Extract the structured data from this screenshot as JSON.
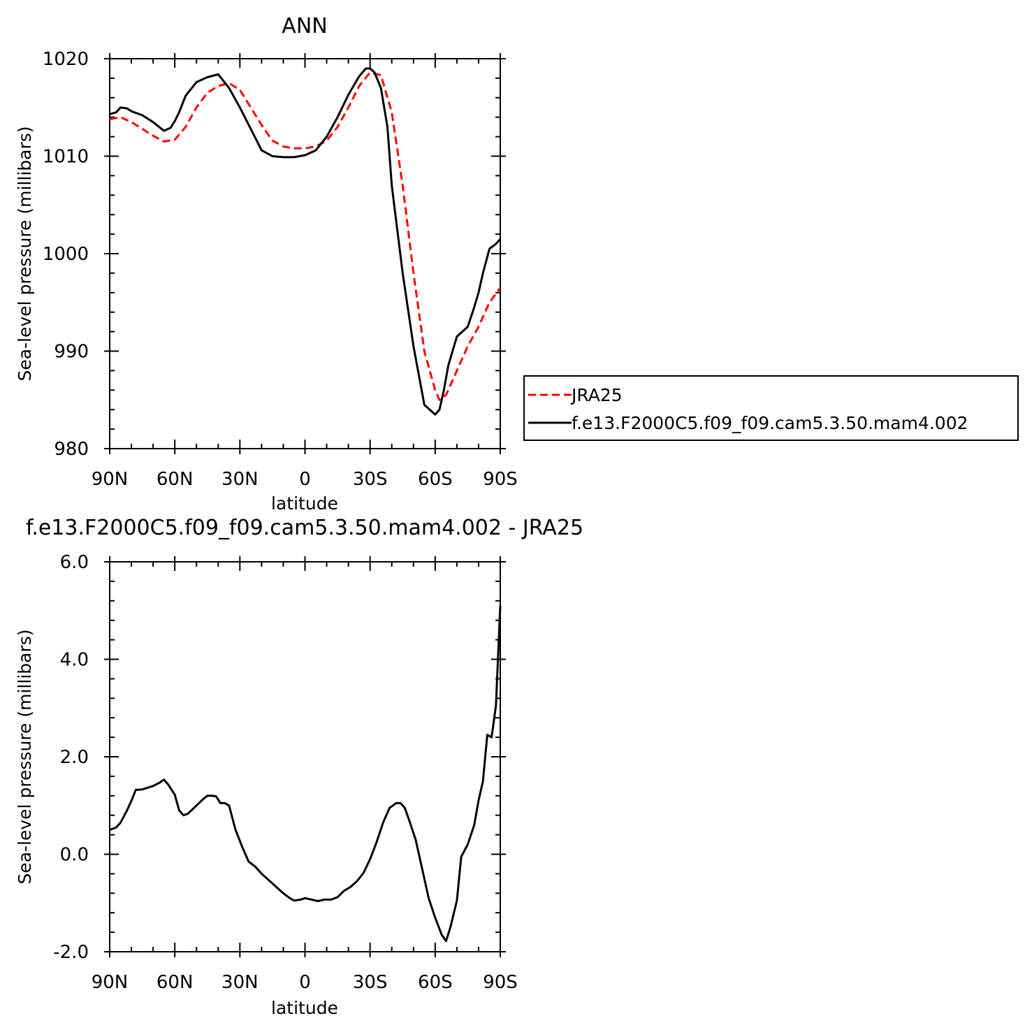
{
  "chart_data": [
    {
      "type": "line",
      "title": "ANN",
      "xlabel": "latitude",
      "ylabel": "Sea-level pressure (millibars)",
      "x_ticks": [
        "90N",
        "60N",
        "30N",
        "0",
        "30S",
        "60S",
        "90S"
      ],
      "y_ticks": [
        "980",
        "990",
        "1000",
        "1010",
        "1020"
      ],
      "ylim": [
        980,
        1020
      ],
      "legend_position": "right",
      "series": [
        {
          "name": "JRA25",
          "color": "#ff0000",
          "style": "dashed",
          "x": [
            90,
            85,
            80,
            75,
            70,
            65,
            60,
            55,
            50,
            45,
            40,
            35,
            30,
            25,
            20,
            15,
            10,
            5,
            0,
            -5,
            -10,
            -15,
            -20,
            -25,
            -30,
            -35,
            -40,
            -45,
            -50,
            -55,
            -60,
            -62,
            -65,
            -70,
            -75,
            -80,
            -85,
            -90
          ],
          "values": [
            1013.8,
            1014.0,
            1013.5,
            1012.8,
            1012.1,
            1011.5,
            1011.7,
            1013.0,
            1015.0,
            1016.5,
            1017.2,
            1017.5,
            1016.8,
            1015.0,
            1013.2,
            1011.6,
            1011.0,
            1010.8,
            1010.8,
            1011.0,
            1011.6,
            1013.0,
            1015.0,
            1017.2,
            1018.6,
            1018.3,
            1014.5,
            1007.0,
            998.0,
            990.0,
            986.0,
            985.0,
            985.5,
            988.0,
            990.5,
            992.5,
            995.0,
            996.5
          ]
        },
        {
          "name": "f.e13.F2000C5.f09_f09.cam5.3.50.mam4.002",
          "color": "#000000",
          "style": "solid",
          "x": [
            90,
            87,
            85,
            82,
            80,
            75,
            70,
            65,
            62,
            60,
            58,
            55,
            50,
            45,
            40,
            35,
            30,
            25,
            20,
            15,
            10,
            5,
            0,
            -5,
            -10,
            -15,
            -20,
            -25,
            -28,
            -30,
            -32,
            -35,
            -38,
            -40,
            -45,
            -50,
            -55,
            -60,
            -62,
            -64,
            -66,
            -70,
            -75,
            -78,
            -80,
            -82,
            -85,
            -88,
            -90
          ],
          "values": [
            1014.3,
            1014.5,
            1015.0,
            1014.9,
            1014.6,
            1014.2,
            1013.5,
            1012.6,
            1012.9,
            1013.6,
            1014.5,
            1016.2,
            1017.6,
            1018.1,
            1018.4,
            1017.0,
            1015.0,
            1012.8,
            1010.6,
            1010.0,
            1009.9,
            1009.9,
            1010.1,
            1010.6,
            1012.0,
            1014.0,
            1016.3,
            1018.2,
            1019.0,
            1019.0,
            1018.6,
            1017.0,
            1013.0,
            1007.0,
            998.0,
            990.5,
            984.5,
            983.5,
            984.0,
            986.0,
            988.5,
            991.5,
            992.5,
            994.5,
            996.0,
            998.0,
            1000.5,
            1001.0,
            1001.5
          ]
        }
      ]
    },
    {
      "type": "line",
      "title": "f.e13.F2000C5.f09_f09.cam5.3.50.mam4.002 - JRA25",
      "xlabel": "latitude",
      "ylabel": "Sea-level pressure (millibars)",
      "x_ticks": [
        "90N",
        "60N",
        "30N",
        "0",
        "30S",
        "60S",
        "90S"
      ],
      "y_ticks": [
        "-2.0",
        "0.0",
        "2.0",
        "4.0",
        "6.0"
      ],
      "ylim": [
        -2,
        6
      ],
      "series": [
        {
          "color": "#000000",
          "style": "solid",
          "x": [
            90,
            87,
            85,
            82,
            80,
            78,
            75,
            70,
            67,
            65,
            63,
            60,
            58,
            56,
            54,
            50,
            47,
            45,
            43,
            41,
            39,
            37,
            35,
            32,
            29,
            26,
            23,
            20,
            15,
            10,
            7,
            5,
            2,
            0,
            -3,
            -6,
            -9,
            -12,
            -15,
            -18,
            -21,
            -24,
            -27,
            -30,
            -33,
            -36,
            -39,
            -42,
            -44,
            -46,
            -48,
            -51,
            -54,
            -57,
            -60,
            -63,
            -65,
            -67,
            -70,
            -72,
            -75,
            -78,
            -80,
            -82,
            -84,
            -86,
            -88,
            -90
          ],
          "values": [
            0.5,
            0.55,
            0.65,
            0.9,
            1.1,
            1.32,
            1.33,
            1.4,
            1.47,
            1.53,
            1.43,
            1.22,
            0.9,
            0.8,
            0.83,
            1.0,
            1.13,
            1.2,
            1.2,
            1.19,
            1.05,
            1.05,
            1.0,
            0.5,
            0.16,
            -0.15,
            -0.25,
            -0.4,
            -0.6,
            -0.8,
            -0.9,
            -0.95,
            -0.93,
            -0.9,
            -0.93,
            -0.96,
            -0.93,
            -0.93,
            -0.88,
            -0.75,
            -0.67,
            -0.55,
            -0.38,
            -0.1,
            0.25,
            0.65,
            0.95,
            1.05,
            1.05,
            0.95,
            0.7,
            0.3,
            -0.3,
            -0.9,
            -1.3,
            -1.65,
            -1.78,
            -1.5,
            -0.95,
            -0.05,
            0.2,
            0.6,
            1.1,
            1.5,
            2.45,
            2.4,
            3.05,
            5.1
          ]
        }
      ]
    }
  ]
}
